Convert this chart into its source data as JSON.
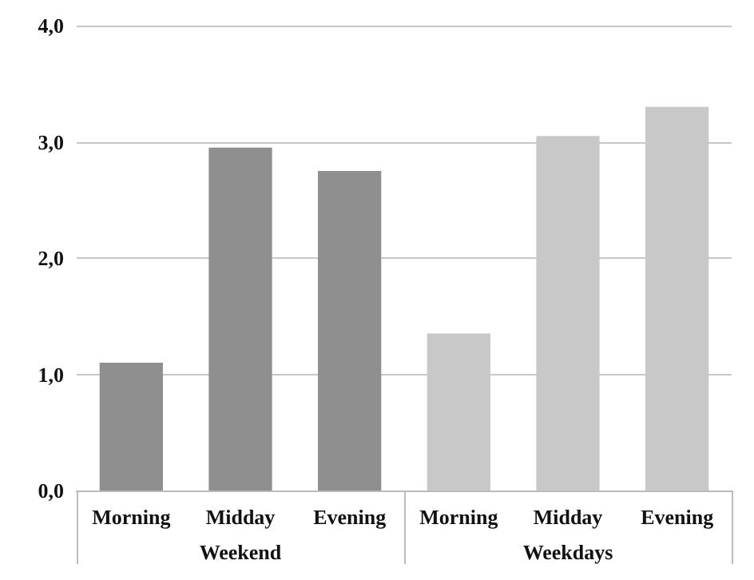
{
  "chart_data": {
    "type": "bar",
    "categories": [
      "Morning",
      "Midday",
      "Evening",
      "Morning",
      "Midday",
      "Evening"
    ],
    "series": [
      {
        "name": "Weekend",
        "color": "#8f8f8f",
        "values": [
          1.1,
          2.95,
          2.75,
          null,
          null,
          null
        ]
      },
      {
        "name": "Weekdays",
        "color": "#c8c8c8",
        "values": [
          null,
          null,
          null,
          1.35,
          3.05,
          3.3
        ]
      }
    ],
    "ylim": [
      0,
      4
    ],
    "yticks": [
      {
        "value": 0,
        "label": "0,0"
      },
      {
        "value": 1,
        "label": "1,0"
      },
      {
        "value": 2,
        "label": "2,0"
      },
      {
        "value": 3,
        "label": "3,0"
      },
      {
        "value": 4,
        "label": "4,0"
      }
    ],
    "grid": "y"
  }
}
